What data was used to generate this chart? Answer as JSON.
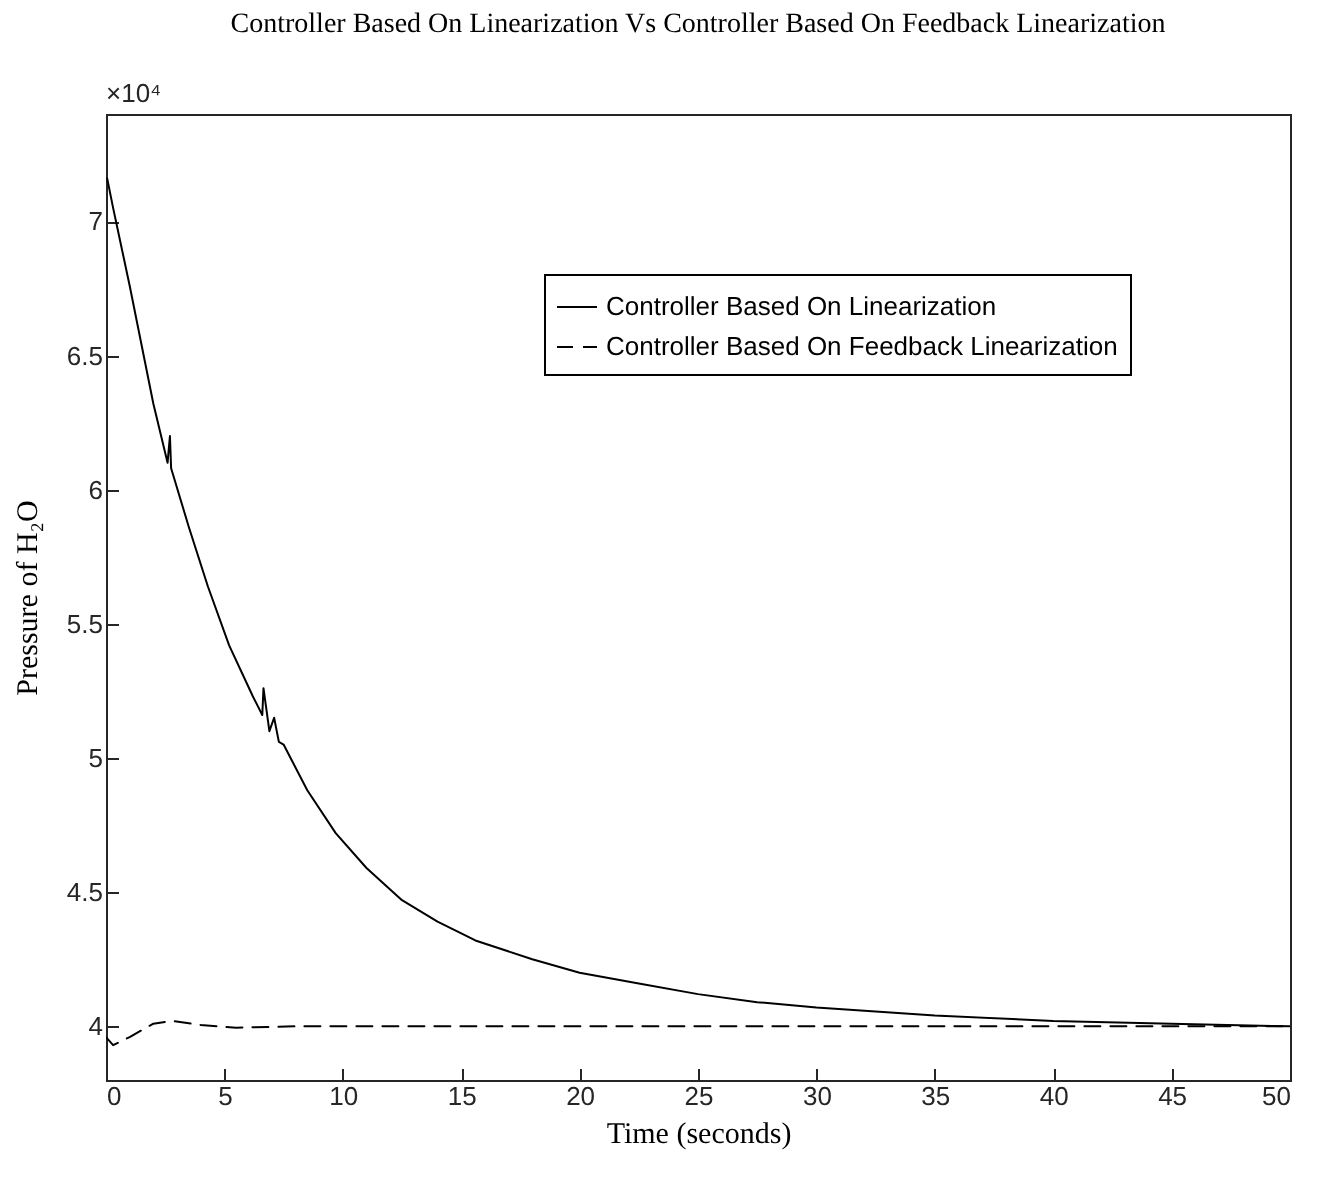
{
  "chart_data": {
    "type": "line",
    "title": "Controller Based On Linearization Vs Controller Based On Feedback Linearization",
    "xlabel": "Time (seconds)",
    "ylabel": "Pressure of H₂O",
    "annotations": [
      "×10⁴"
    ],
    "xlim": [
      0,
      50
    ],
    "xticks": [
      0,
      5,
      10,
      15,
      20,
      25,
      30,
      35,
      40,
      45,
      50
    ],
    "ylim": [
      3.8,
      7.4
    ],
    "yticks": [
      4,
      4.5,
      5,
      5.5,
      6,
      6.5,
      7
    ],
    "grid": false,
    "legend": "top right",
    "marker": "none",
    "series": [
      {
        "name": "Controller Based On Linearization",
        "color": "#000000",
        "line_style": "solid",
        "x": [
          0.05,
          0.3,
          1,
          2,
          2.6,
          2.7,
          2.75,
          3.5,
          4.3,
          5.2,
          6.2,
          6.6,
          6.65,
          6.9,
          7.1,
          7.3,
          7.5,
          8.5,
          9.7,
          11,
          12.5,
          14,
          15.6,
          18,
          20,
          22.5,
          25,
          27.5,
          30,
          35,
          40,
          45,
          50
        ],
        "values": [
          7.16,
          7.05,
          6.76,
          6.32,
          6.1,
          6.2,
          6.08,
          5.86,
          5.64,
          5.42,
          5.23,
          5.16,
          5.26,
          5.1,
          5.15,
          5.06,
          5.05,
          4.88,
          4.72,
          4.59,
          4.47,
          4.39,
          4.32,
          4.25,
          4.2,
          4.16,
          4.12,
          4.09,
          4.07,
          4.04,
          4.02,
          4.01,
          4.0
        ]
      },
      {
        "name": "Controller Based On Feedback Linearization",
        "color": "#000000",
        "line_style": "dashed",
        "x": [
          0,
          0.3,
          1,
          2,
          2.8,
          4,
          5.5,
          8,
          15,
          25,
          35,
          50
        ],
        "values": [
          3.96,
          3.93,
          3.96,
          4.01,
          4.02,
          4.005,
          3.995,
          4.0,
          4.0,
          4.0,
          4.0,
          4.0
        ]
      }
    ]
  }
}
